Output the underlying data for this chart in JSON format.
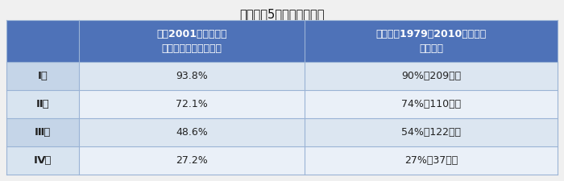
{
  "title": "進行期別5年生存率の比較",
  "col_headers": [
    "全国2001年の治療例\n（日本産婦人科学会）",
    "富山大（1979～2010年までの\n治療例）"
  ],
  "row_labels": [
    "Ⅰ期",
    "Ⅱ期",
    "Ⅲ期",
    "Ⅳ期"
  ],
  "col1_values": [
    "93.8%",
    "72.1%",
    "48.6%",
    "27.2%"
  ],
  "col2_values": [
    "90%（209例）",
    "74%（110例）",
    "54%（122例）",
    "27%（37例）"
  ],
  "header_bg": "#4e72b8",
  "header_text": "#ffffff",
  "row_bg_odd": "#dce6f1",
  "row_bg_even": "#eaf0f8",
  "row_label_bg_odd": "#c5d5e8",
  "row_label_bg_even": "#d8e4f0",
  "cell_text": "#222222",
  "border_color": "#9ab3d5",
  "fig_bg": "#f0f0f0",
  "title_fontsize": 10.5,
  "header_fontsize": 9,
  "cell_fontsize": 9,
  "row_label_fontsize": 9.5
}
